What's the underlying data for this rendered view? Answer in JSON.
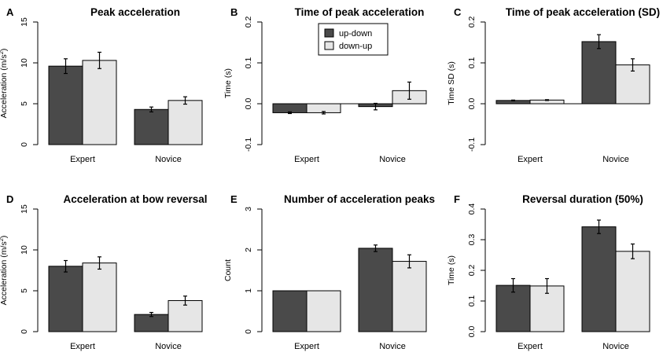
{
  "legend": {
    "entries": [
      {
        "label": "up-down",
        "color": "#4a4a4a"
      },
      {
        "label": "down-up",
        "color": "#e6e6e6"
      }
    ]
  },
  "chart_data": [
    {
      "type": "bar",
      "letter": "A",
      "title": "Peak acceleration",
      "ylabel": "Acceleration (m/s²)",
      "ylabel_main": "Acceleration  (m/s",
      "ylabel_sup": "2",
      "ylabel_tail": ")",
      "categories": [
        "Expert",
        "Novice"
      ],
      "series": [
        {
          "name": "up-down",
          "color": "#4a4a4a",
          "values": [
            9.6,
            4.3
          ],
          "errors": [
            0.9,
            0.3
          ]
        },
        {
          "name": "down-up",
          "color": "#e6e6e6",
          "values": [
            10.3,
            5.4
          ],
          "errors": [
            1.0,
            0.45
          ]
        }
      ],
      "ylim": [
        0,
        15
      ],
      "yticks": [
        0,
        5,
        10,
        15
      ],
      "ytick_labels": [
        "0",
        "5",
        "10",
        "15"
      ]
    },
    {
      "type": "bar",
      "letter": "B",
      "title": "Time of peak acceleration",
      "ylabel": "Time (s)",
      "categories": [
        "Expert",
        "Novice"
      ],
      "series": [
        {
          "name": "up-down",
          "color": "#4a4a4a",
          "values": [
            -0.022,
            -0.007
          ],
          "errors": [
            0.002,
            0.008
          ]
        },
        {
          "name": "down-up",
          "color": "#e6e6e6",
          "values": [
            -0.022,
            0.032
          ],
          "errors": [
            0.003,
            0.021
          ]
        }
      ],
      "ylim": [
        -0.1,
        0.2
      ],
      "yticks": [
        -0.1,
        0.0,
        0.1,
        0.2
      ],
      "ytick_labels": [
        "-0.1",
        "0.0",
        "0.1",
        "0.2"
      ],
      "zero_line": true,
      "has_legend": true
    },
    {
      "type": "bar",
      "letter": "C",
      "title": "Time of peak acceleration (SD)",
      "ylabel": "Time SD (s)",
      "categories": [
        "Expert",
        "Novice"
      ],
      "series": [
        {
          "name": "up-down",
          "color": "#4a4a4a",
          "values": [
            0.008,
            0.152
          ],
          "errors": [
            0.001,
            0.017
          ]
        },
        {
          "name": "down-up",
          "color": "#e6e6e6",
          "values": [
            0.009,
            0.095
          ],
          "errors": [
            0.001,
            0.015
          ]
        }
      ],
      "ylim": [
        -0.1,
        0.2
      ],
      "yticks": [
        -0.1,
        0.0,
        0.1,
        0.2
      ],
      "ytick_labels": [
        "-0.1",
        "0.0",
        "0.1",
        "0.2"
      ],
      "zero_line": true
    },
    {
      "type": "bar",
      "letter": "D",
      "title": "Acceleration at bow reversal",
      "ylabel": "Acceleration (m/s²)",
      "ylabel_main": "Acceleration  (m/s",
      "ylabel_sup": "2",
      "ylabel_tail": ")",
      "categories": [
        "Expert",
        "Novice"
      ],
      "series": [
        {
          "name": "up-down",
          "color": "#4a4a4a",
          "values": [
            8.0,
            2.1
          ],
          "errors": [
            0.7,
            0.25
          ]
        },
        {
          "name": "down-up",
          "color": "#e6e6e6",
          "values": [
            8.4,
            3.8
          ],
          "errors": [
            0.75,
            0.55
          ]
        }
      ],
      "ylim": [
        0,
        15
      ],
      "yticks": [
        0,
        5,
        10,
        15
      ],
      "ytick_labels": [
        "0",
        "5",
        "10",
        "15"
      ]
    },
    {
      "type": "bar",
      "letter": "E",
      "title": "Number of acceleration peaks",
      "ylabel": "Count",
      "categories": [
        "Expert",
        "Novice"
      ],
      "series": [
        {
          "name": "up-down",
          "color": "#4a4a4a",
          "values": [
            1.0,
            2.04
          ],
          "errors": [
            0.0,
            0.08
          ]
        },
        {
          "name": "down-up",
          "color": "#e6e6e6",
          "values": [
            1.0,
            1.72
          ],
          "errors": [
            0.0,
            0.16
          ]
        }
      ],
      "ylim": [
        0,
        3
      ],
      "yticks": [
        0,
        1,
        2,
        3
      ],
      "ytick_labels": [
        "0",
        "1",
        "2",
        "3"
      ]
    },
    {
      "type": "bar",
      "letter": "F",
      "title": "Reversal duration (50%)",
      "ylabel": "Time (s)",
      "categories": [
        "Expert",
        "Novice"
      ],
      "series": [
        {
          "name": "up-down",
          "color": "#4a4a4a",
          "values": [
            0.151,
            0.342
          ],
          "errors": [
            0.022,
            0.022
          ]
        },
        {
          "name": "down-up",
          "color": "#e6e6e6",
          "values": [
            0.149,
            0.262
          ],
          "errors": [
            0.024,
            0.024
          ]
        }
      ],
      "ylim": [
        0,
        0.4
      ],
      "yticks": [
        0.0,
        0.1,
        0.2,
        0.3,
        0.4
      ],
      "ytick_labels": [
        "0.0",
        "0.1",
        "0.2",
        "0.3",
        "0.4"
      ]
    }
  ]
}
